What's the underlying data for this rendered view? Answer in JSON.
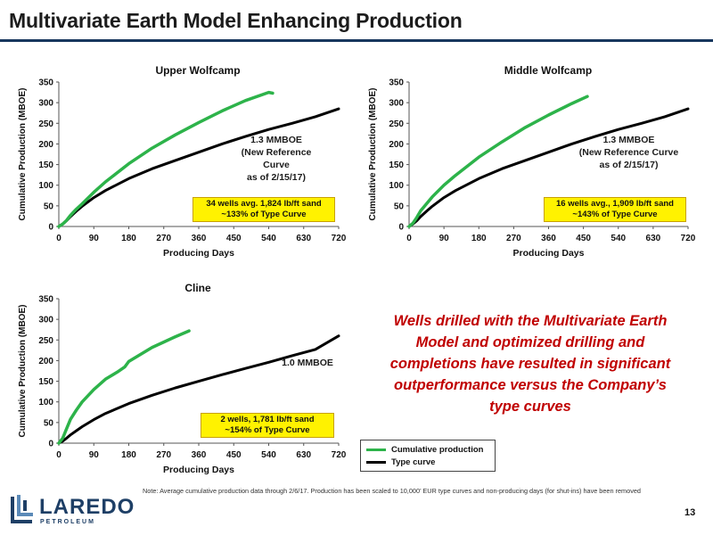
{
  "page_title": "Multivariate Earth Model Enhancing Production",
  "colors": {
    "cumulative": "#2db34a",
    "type_curve": "#000000",
    "message": "#c00000",
    "callout_box": "#fff200",
    "title_rule": "#17365d"
  },
  "message": "Wells drilled with the Multivariate Earth Model and optimized drilling and completions have resulted in significant outperformance versus the Company’s type curves",
  "legend": {
    "items": [
      {
        "label": "Cumulative production",
        "color": "#2db34a"
      },
      {
        "label": "Type curve",
        "color": "#000000"
      }
    ]
  },
  "note": "Note: Average cumulative production data through 2/6/17. Production has been scaled to 10,000’ EUR type curves and non-producing days (for shut-ins) have been removed",
  "page_number": "13",
  "logo": {
    "name": "LAREDO",
    "sub": "PETROLEUM",
    "icon": "laredo-logo-icon"
  },
  "chart_data": [
    {
      "type": "line",
      "title": "Upper Wolfcamp",
      "xlabel": "Producing Days",
      "ylabel": "Cumulative Production (MBOE)",
      "xlim": [
        0,
        720
      ],
      "ylim": [
        0,
        350
      ],
      "xticks": [
        "0",
        "90",
        "180",
        "270",
        "360",
        "450",
        "540",
        "630",
        "720"
      ],
      "yticks": [
        "0",
        "50",
        "100",
        "150",
        "200",
        "250",
        "300",
        "350"
      ],
      "callout": {
        "line1": "1.3 MMBOE",
        "line2": "(New Reference Curve",
        "line3": "as of 2/15/17)"
      },
      "box": {
        "line1": "34 wells avg. 1,824 lb/ft sand",
        "line2": "~133% of Type Curve"
      },
      "series": [
        {
          "name": "Cumulative production",
          "x": [
            0,
            10,
            20,
            30,
            45,
            60,
            90,
            120,
            180,
            240,
            300,
            360,
            420,
            480,
            540,
            550
          ],
          "y": [
            0,
            6,
            15,
            27,
            42,
            55,
            83,
            108,
            152,
            190,
            222,
            252,
            280,
            305,
            325,
            323
          ]
        },
        {
          "name": "Type curve",
          "x": [
            0,
            10,
            20,
            30,
            45,
            60,
            90,
            120,
            180,
            240,
            300,
            360,
            420,
            480,
            540,
            600,
            660,
            720
          ],
          "y": [
            0,
            6,
            14,
            24,
            37,
            49,
            70,
            87,
            116,
            140,
            160,
            180,
            200,
            218,
            235,
            250,
            266,
            285
          ]
        }
      ]
    },
    {
      "type": "line",
      "title": "Middle Wolfcamp",
      "xlabel": "Producing Days",
      "ylabel": "Cumulative Production (MBOE)",
      "xlim": [
        0,
        720
      ],
      "ylim": [
        0,
        350
      ],
      "xticks": [
        "0",
        "90",
        "180",
        "270",
        "360",
        "450",
        "540",
        "630",
        "720"
      ],
      "yticks": [
        "0",
        "50",
        "100",
        "150",
        "200",
        "250",
        "300",
        "350"
      ],
      "callout": {
        "line1": "1.3 MMBOE",
        "line2": "(New Reference Curve",
        "line3": "as of 2/15/17)"
      },
      "box": {
        "line1": "16 wells avg., 1,909 lb/ft sand",
        "line2": "~143% of Type Curve"
      },
      "series": [
        {
          "name": "Cumulative production",
          "x": [
            0,
            10,
            20,
            30,
            45,
            60,
            90,
            120,
            180,
            240,
            300,
            360,
            420,
            460
          ],
          "y": [
            0,
            8,
            22,
            38,
            55,
            72,
            100,
            124,
            168,
            205,
            240,
            270,
            298,
            315
          ]
        },
        {
          "name": "Type curve",
          "x": [
            0,
            10,
            20,
            30,
            45,
            60,
            90,
            120,
            180,
            240,
            300,
            360,
            420,
            480,
            540,
            600,
            660,
            720
          ],
          "y": [
            0,
            6,
            14,
            24,
            37,
            49,
            70,
            87,
            116,
            140,
            160,
            180,
            200,
            218,
            235,
            250,
            266,
            285
          ]
        }
      ]
    },
    {
      "type": "line",
      "title": "Cline",
      "xlabel": "Producing Days",
      "ylabel": "Cumulative Production (MBOE)",
      "xlim": [
        0,
        720
      ],
      "ylim": [
        0,
        350
      ],
      "xticks": [
        "0",
        "90",
        "180",
        "270",
        "360",
        "450",
        "540",
        "630",
        "720"
      ],
      "yticks": [
        "0",
        "50",
        "100",
        "150",
        "200",
        "250",
        "300",
        "350"
      ],
      "callout": {
        "line1": "1.0 MMBOE",
        "line2": "",
        "line3": ""
      },
      "box": {
        "line1": "2 wells, 1,781 lb/ft sand",
        "line2": "~154% of Type Curve"
      },
      "series": [
        {
          "name": "Cumulative production",
          "x": [
            0,
            10,
            20,
            30,
            45,
            60,
            90,
            120,
            150,
            170,
            180,
            210,
            240,
            270,
            300,
            335
          ],
          "y": [
            0,
            12,
            35,
            58,
            80,
            100,
            130,
            155,
            172,
            185,
            198,
            215,
            232,
            245,
            258,
            272
          ]
        },
        {
          "name": "Type curve",
          "x": [
            0,
            10,
            20,
            30,
            45,
            60,
            90,
            120,
            180,
            240,
            300,
            360,
            420,
            480,
            540,
            600,
            660,
            720
          ],
          "y": [
            0,
            5,
            12,
            20,
            30,
            40,
            57,
            72,
            96,
            116,
            134,
            150,
            166,
            181,
            196,
            212,
            227,
            260
          ]
        }
      ]
    }
  ]
}
